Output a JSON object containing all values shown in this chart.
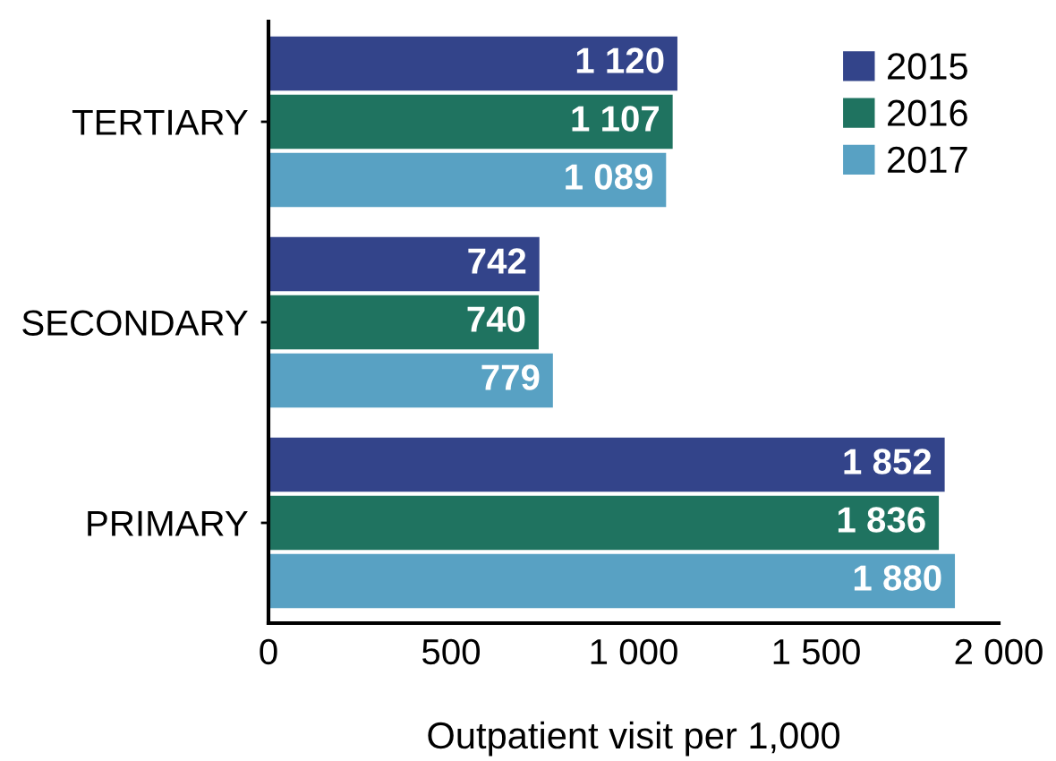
{
  "chart_data": {
    "type": "bar",
    "orientation": "horizontal",
    "categories": [
      "TERTIARY",
      "SECONDARY",
      "PRIMARY"
    ],
    "series": [
      {
        "name": "2015",
        "color": "#33448a",
        "values": [
          1120,
          742,
          1852
        ],
        "value_labels": [
          "1 120",
          "742",
          "1 852"
        ]
      },
      {
        "name": "2016",
        "color": "#1f7360",
        "values": [
          1107,
          740,
          1836
        ],
        "value_labels": [
          "1 107",
          "740",
          "1 836"
        ]
      },
      {
        "name": "2017",
        "color": "#58a1c3",
        "values": [
          1089,
          779,
          1880
        ],
        "value_labels": [
          "1 089",
          "779",
          "1 880"
        ]
      }
    ],
    "xlabel": "Outpatient visit per 1,000",
    "xlim": [
      0,
      2000
    ],
    "xticks": [
      0,
      500,
      {
        "value": 1000,
        "label": "1 000"
      },
      {
        "value": 1500,
        "label": "1 500"
      },
      {
        "value": 2000,
        "label": "2 000"
      }
    ],
    "legend": "top right"
  }
}
